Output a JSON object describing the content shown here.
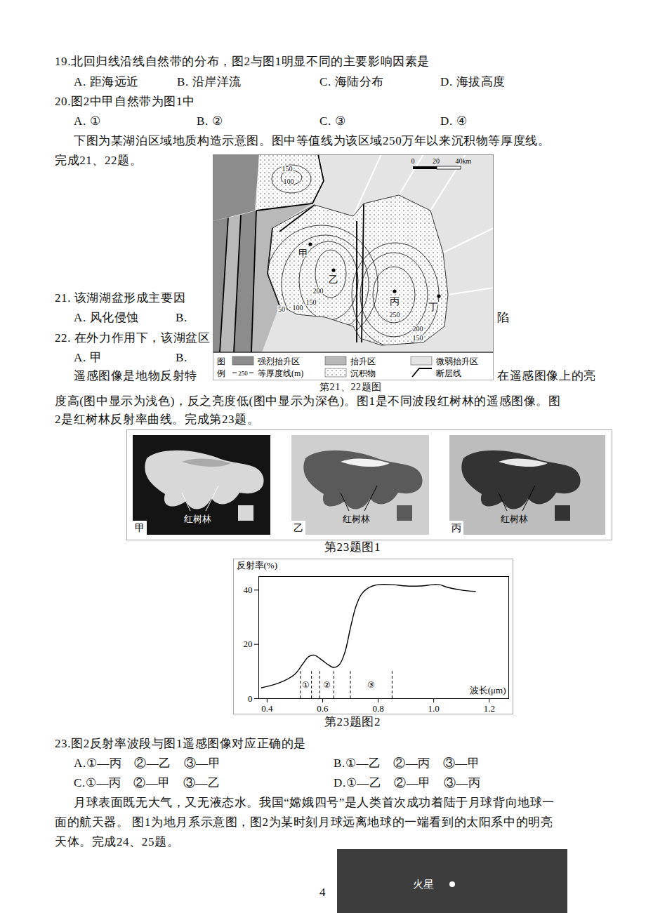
{
  "q19": {
    "stem": "19.北回归线沿线自然带的分布，图2与图1明显不同的主要影响因素是",
    "options": [
      "A. 距海远近",
      "B. 沿岸洋流",
      "C. 海陆分布",
      "D. 海拔高度"
    ]
  },
  "q20": {
    "stem": "20.图2中甲自然带为图1中",
    "options": [
      "A. ①",
      "B. ②",
      "C. ③",
      "D. ④"
    ]
  },
  "intro_21_22": [
    "下图为某湖泊区域地质构造示意图。图中等值线为该区域250万年以来沉积物等厚度线。",
    "完成21、22题。"
  ],
  "q21": {
    "stem": "21. 该湖湖盆形成主要因",
    "options_visible": [
      "A. 风化侵蚀",
      "B.",
      "陷"
    ]
  },
  "q22": {
    "stem": "22. 在外力作用下，该湖盆区",
    "options_visible": [
      "A. 甲",
      "B."
    ]
  },
  "map": {
    "caption": "第21、22题图",
    "scale": [
      "0",
      "20",
      "40km"
    ],
    "points": [
      "甲",
      "乙",
      "丙",
      "丁"
    ],
    "contour_labels": [
      "150",
      "100",
      "200",
      "150",
      "100",
      "50",
      "250",
      "200",
      "150"
    ],
    "legend_title": "图例",
    "legend": [
      {
        "label": "强烈抬升区"
      },
      {
        "label": "抬升区"
      },
      {
        "label": "微弱抬升区"
      },
      {
        "label": "等厚度线(m)",
        "symbol": "250"
      },
      {
        "label": "沉积物"
      },
      {
        "label": "断层线"
      }
    ]
  },
  "intro_23": {
    "line1": [
      "遥感图像是地物反射特",
      "在遥感图像上的亮"
    ],
    "line2": "度高(图中显示为浅色)，反之亮度低(图中显示为深色)。图1是不同波段红树林的遥感图像。图",
    "line3": "2是红树林反射率曲线。完成第23题。"
  },
  "figure1": {
    "caption": "第23题图1",
    "panels": [
      {
        "label": "甲",
        "annotation": "红树林"
      },
      {
        "label": "乙",
        "annotation": "红树林"
      },
      {
        "label": "丙",
        "annotation": "红树林"
      }
    ]
  },
  "figure2_caption": "第23题图2",
  "chart_data": {
    "type": "line",
    "xlabel": "波长(μm)",
    "ylabel": "反射率(%)",
    "x": [
      0.38,
      0.42,
      0.46,
      0.5,
      0.53,
      0.55,
      0.57,
      0.6,
      0.62,
      0.64,
      0.66,
      0.68,
      0.7,
      0.72,
      0.74,
      0.76,
      0.78,
      0.8,
      0.85,
      0.9,
      0.95,
      1.0,
      1.02,
      1.05,
      1.1,
      1.15
    ],
    "values": [
      4,
      5,
      6.5,
      9,
      13,
      15.5,
      16,
      14,
      12.5,
      11.5,
      12.5,
      17,
      26,
      34,
      38.5,
      40.5,
      41.5,
      42,
      42,
      41.5,
      41.5,
      42,
      42,
      41,
      40,
      39.5
    ],
    "xlim": [
      0.37,
      1.27
    ],
    "ylim": [
      0,
      45
    ],
    "xticks": [
      0.4,
      0.6,
      0.8,
      {
        "value": 1,
        "label": "1.0"
      },
      1.2
    ],
    "yticks": [
      0,
      20,
      40
    ],
    "grid": false,
    "annotations": [
      {
        "text": "①",
        "x1": 0.52,
        "x2": 0.56,
        "top": 10
      },
      {
        "text": "②",
        "x1": 0.59,
        "x2": 0.64,
        "top": 10
      },
      {
        "text": "③",
        "x1": 0.7,
        "x2": 0.85,
        "top": 10
      }
    ]
  },
  "q23": {
    "stem": "23.图2反射率波段与图1遥感图像对应正确的是",
    "options": [
      "A.①—丙　②—乙　③—甲",
      "B.①—乙　②—丙　③—甲",
      "C.①—丙　②—甲　③—乙",
      "D.①—乙　②—甲　③—丙"
    ]
  },
  "intro_24_25": [
    "月球表面既无大气，又无液态水。我国“嫦娥四号”是人类首次成功着陆于月球背向地球一",
    "面的航天器。 图1为地月系示意图，图2为某时刻月球远离地球的一端看到的太阳系中的明亮",
    "天体。完成24、25题。"
  ],
  "figure_bottom": {
    "labels": [
      "火星"
    ]
  },
  "page_number": "4"
}
